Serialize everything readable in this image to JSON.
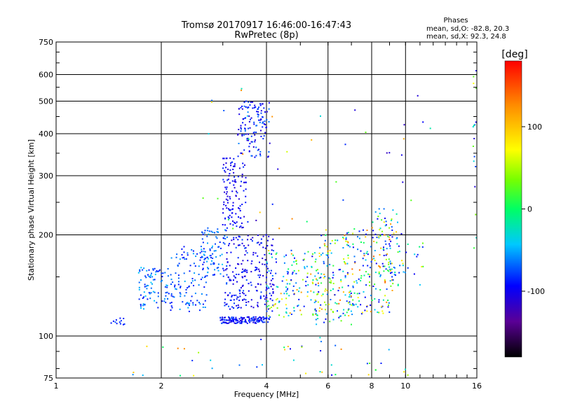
{
  "chart_data": {
    "type": "scatter",
    "title": "Tromsø 20170917 16:46:00-16:47:43",
    "subtitle": "RwPretec (8p)",
    "xlabel": "Frequency [MHz]",
    "ylabel": "Stationary phase Virtual Height [km]",
    "x_scale": "log",
    "y_scale": "log",
    "xlim": [
      1,
      16
    ],
    "ylim": [
      75,
      750
    ],
    "x_ticks": [
      1,
      2,
      4,
      6,
      8,
      10,
      16
    ],
    "x_tick_labels": [
      "1",
      "2",
      "4",
      "6",
      "8",
      "10",
      "16"
    ],
    "y_ticks": [
      75,
      100,
      200,
      300,
      400,
      500,
      600,
      750
    ],
    "y_tick_labels": [
      "75",
      "100",
      "200",
      "300",
      "400",
      "500",
      "600",
      "750"
    ],
    "grid": true,
    "legend_placement": "top-right",
    "legend": {
      "heading": "Phases",
      "line1": "mean, sd,O: -82.8, 20.3",
      "line2": "mean, sd,X:  92.3, 24.8"
    },
    "colorbar": {
      "label": "[deg]",
      "min": -180,
      "max": 180,
      "ticks": [
        100,
        0,
        -100
      ],
      "tick_labels": [
        "100",
        "0",
        "-100"
      ],
      "colormap": "rainbow"
    },
    "series": [
      {
        "clusters": [
          {
            "x": [
              1.42,
              1.62
            ],
            "y": [
              108,
              113
            ],
            "phase": [
              -90,
              -70
            ],
            "n": 12
          },
          {
            "x": [
              1.72,
              2.15
            ],
            "y": [
              120,
              160
            ],
            "phase": [
              -90,
              -40
            ],
            "n": 90
          },
          {
            "x": [
              2.1,
              2.7
            ],
            "y": [
              118,
              185
            ],
            "phase": [
              -90,
              -50
            ],
            "n": 110
          },
          {
            "x": [
              2.6,
              3.1
            ],
            "y": [
              150,
              210
            ],
            "phase": [
              -90,
              -40
            ],
            "n": 90
          },
          {
            "x": [
              2.9,
              4.1
            ],
            "y": [
              109,
              114
            ],
            "phase": [
              -110,
              -70
            ],
            "n": 150
          },
          {
            "x": [
              3.0,
              3.5
            ],
            "y": [
              210,
              340
            ],
            "phase": [
              -110,
              -80
            ],
            "n": 120
          },
          {
            "x": [
              3.3,
              4.1
            ],
            "y": [
              340,
              500
            ],
            "phase": [
              -110,
              -60
            ],
            "n": 130
          },
          {
            "x": [
              3.0,
              4.2
            ],
            "y": [
              120,
              200
            ],
            "phase": [
              -110,
              -70
            ],
            "n": 220
          },
          {
            "x": [
              4.0,
              5.6
            ],
            "y": [
              114,
              180
            ],
            "phase": [
              -100,
              120
            ],
            "n": 140
          },
          {
            "x": [
              5.5,
              7.0
            ],
            "y": [
              108,
              200
            ],
            "phase": [
              -100,
              140
            ],
            "n": 140
          },
          {
            "x": [
              6.8,
              9.2
            ],
            "y": [
              115,
              210
            ],
            "phase": [
              -100,
              150
            ],
            "n": 170
          },
          {
            "x": [
              8.0,
              9.5
            ],
            "y": [
              180,
              240
            ],
            "phase": [
              -100,
              120
            ],
            "n": 40
          },
          {
            "x": [
              9.0,
              11.5
            ],
            "y": [
              140,
              190
            ],
            "phase": [
              -100,
              100
            ],
            "n": 40
          },
          {
            "x": [
              15.6,
              16.0
            ],
            "y": [
              180,
              620
            ],
            "phase": [
              -110,
              100
            ],
            "n": 18
          },
          {
            "x": [
              1.5,
              12.0
            ],
            "y": [
              76,
              99
            ],
            "phase": [
              -100,
              130
            ],
            "n": 45
          },
          {
            "x": [
              2.5,
              12.0
            ],
            "y": [
              200,
              560
            ],
            "phase": [
              -120,
              140
            ],
            "n": 45
          }
        ]
      }
    ]
  }
}
